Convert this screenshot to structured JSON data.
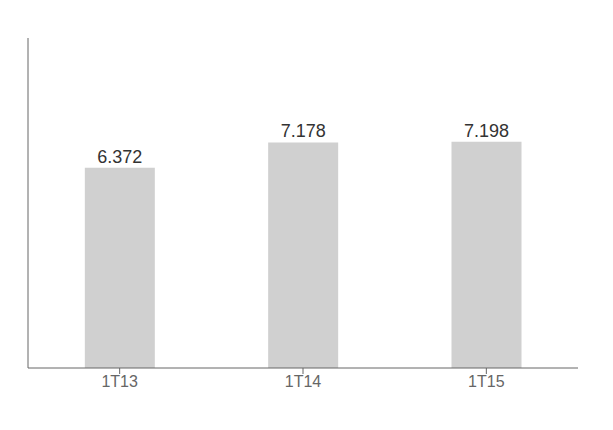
{
  "chart_data": {
    "type": "bar",
    "categories": [
      "1T13",
      "1T14",
      "1T15"
    ],
    "values": [
      6.372,
      7.178,
      7.198
    ],
    "color": "#d0d0d0",
    "ylim": [
      0,
      10.5
    ],
    "data_labels": true,
    "tick_labels": "x",
    "grid": false
  }
}
